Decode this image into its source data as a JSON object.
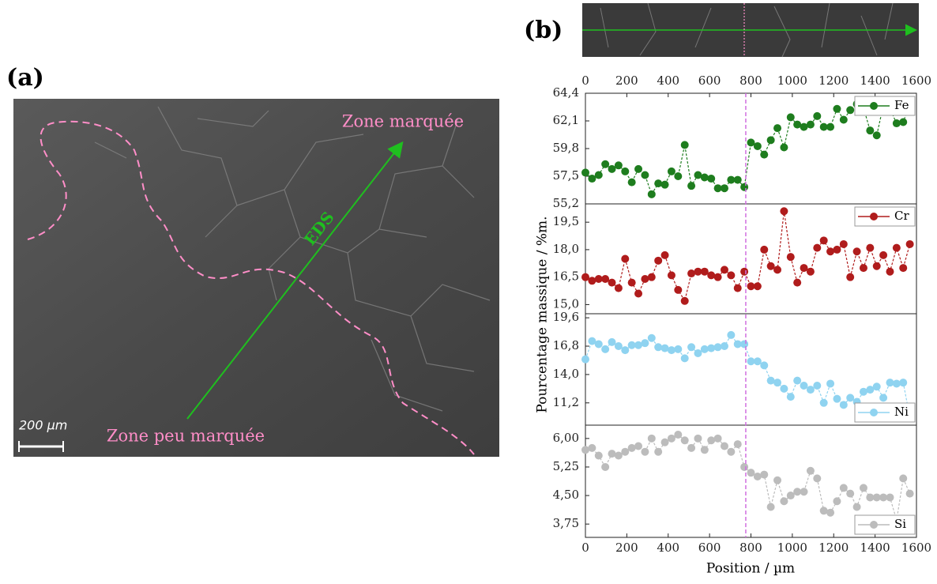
{
  "figure_a": {
    "label": "(a)",
    "zone_marked": "Zone marquée",
    "zone_unmarked": "Zone peu marquée",
    "arrow_label": "EDS",
    "scale_label": "200 µm"
  },
  "figure_b": {
    "label": "(b)",
    "x_label": "Position / µm",
    "y_label": "Pourcentage massique / %m.",
    "xlim": [
      0,
      1600
    ],
    "xticks": [
      0,
      200,
      400,
      600,
      800,
      1000,
      1200,
      1400,
      1600
    ],
    "divider_x": 775
  },
  "chart_data": [
    {
      "type": "line",
      "legend": "upper right",
      "ylim": [
        55.2,
        64.4
      ],
      "yticks": [
        {
          "value": 55.2,
          "label": "55,2"
        },
        {
          "value": 57.5,
          "label": "57,5"
        },
        {
          "value": 59.8,
          "label": "59,8"
        },
        {
          "value": 62.1,
          "label": "62,1"
        },
        {
          "value": 64.4,
          "label": "64,4"
        }
      ],
      "x": [
        0,
        32,
        64,
        96,
        128,
        160,
        192,
        224,
        256,
        288,
        320,
        352,
        384,
        416,
        448,
        480,
        512,
        544,
        576,
        608,
        640,
        672,
        704,
        736,
        768,
        800,
        832,
        864,
        896,
        928,
        960,
        992,
        1024,
        1056,
        1088,
        1120,
        1152,
        1184,
        1216,
        1248,
        1280,
        1312,
        1344,
        1376,
        1408,
        1440,
        1472,
        1504,
        1536,
        1568
      ],
      "series": [
        {
          "name": "Fe",
          "color": "#1e7d1e",
          "values": [
            57.8,
            57.3,
            57.6,
            58.5,
            58.1,
            58.4,
            57.9,
            57.0,
            58.1,
            57.6,
            56.0,
            56.9,
            56.8,
            57.9,
            57.5,
            60.1,
            56.7,
            57.6,
            57.4,
            57.3,
            56.5,
            56.5,
            57.2,
            57.2,
            56.6,
            60.3,
            60.0,
            59.3,
            60.5,
            61.5,
            59.9,
            62.4,
            61.8,
            61.6,
            61.8,
            62.5,
            61.6,
            61.6,
            63.1,
            62.2,
            63.0,
            63.5,
            63.2,
            61.3,
            60.9,
            63.4,
            63.1,
            61.9,
            62.0,
            63.5
          ]
        }
      ]
    },
    {
      "type": "line",
      "legend": "upper right",
      "ylim": [
        14.5,
        20.5
      ],
      "yticks": [
        {
          "value": 15.0,
          "label": "15,0"
        },
        {
          "value": 16.5,
          "label": "16,5"
        },
        {
          "value": 18.0,
          "label": "18,0"
        },
        {
          "value": 19.5,
          "label": "19,5"
        }
      ],
      "x": [
        0,
        32,
        64,
        96,
        128,
        160,
        192,
        224,
        256,
        288,
        320,
        352,
        384,
        416,
        448,
        480,
        512,
        544,
        576,
        608,
        640,
        672,
        704,
        736,
        768,
        800,
        832,
        864,
        896,
        928,
        960,
        992,
        1024,
        1056,
        1088,
        1120,
        1152,
        1184,
        1216,
        1248,
        1280,
        1312,
        1344,
        1376,
        1408,
        1440,
        1472,
        1504,
        1536,
        1568
      ],
      "series": [
        {
          "name": "Cr",
          "color": "#b01c1c",
          "values": [
            16.5,
            16.3,
            16.4,
            16.4,
            16.2,
            15.9,
            17.5,
            16.2,
            15.6,
            16.4,
            16.5,
            17.4,
            17.7,
            16.6,
            15.8,
            15.2,
            16.7,
            16.8,
            16.8,
            16.6,
            16.5,
            16.9,
            16.6,
            15.9,
            16.8,
            16.0,
            16.0,
            18.0,
            17.1,
            16.9,
            20.1,
            17.6,
            16.2,
            17.0,
            16.8,
            18.1,
            18.5,
            17.9,
            18.0,
            18.3,
            16.5,
            17.9,
            17.0,
            18.1,
            17.1,
            17.7,
            16.8,
            18.1,
            17.0,
            18.3
          ]
        }
      ]
    },
    {
      "type": "line",
      "legend": "lower right",
      "ylim": [
        9.0,
        20.0
      ],
      "yticks": [
        {
          "value": 11.2,
          "label": "11,2"
        },
        {
          "value": 14.0,
          "label": "14,0"
        },
        {
          "value": 16.8,
          "label": "16,8"
        },
        {
          "value": 19.6,
          "label": "19,6"
        }
      ],
      "x": [
        0,
        32,
        64,
        96,
        128,
        160,
        192,
        224,
        256,
        288,
        320,
        352,
        384,
        416,
        448,
        480,
        512,
        544,
        576,
        608,
        640,
        672,
        704,
        736,
        768,
        800,
        832,
        864,
        896,
        928,
        960,
        992,
        1024,
        1056,
        1088,
        1120,
        1152,
        1184,
        1216,
        1248,
        1280,
        1312,
        1344,
        1376,
        1408,
        1440,
        1472,
        1504,
        1536,
        1568
      ],
      "series": [
        {
          "name": "Ni",
          "color": "#8fd3f0",
          "values": [
            15.5,
            17.3,
            17.0,
            16.5,
            17.2,
            16.8,
            16.4,
            16.9,
            16.9,
            17.1,
            17.6,
            16.7,
            16.6,
            16.4,
            16.5,
            15.6,
            16.7,
            16.1,
            16.5,
            16.6,
            16.7,
            16.8,
            17.9,
            17.0,
            17.0,
            15.3,
            15.3,
            14.9,
            13.4,
            13.2,
            12.6,
            11.8,
            13.4,
            12.9,
            12.5,
            12.9,
            11.2,
            13.1,
            11.6,
            11.0,
            11.7,
            11.3,
            12.3,
            12.5,
            12.8,
            11.7,
            13.2,
            13.1,
            13.2,
            9.8
          ]
        }
      ]
    },
    {
      "type": "line",
      "legend": "lower right",
      "ylim": [
        3.4,
        6.35
      ],
      "yticks": [
        {
          "value": 3.75,
          "label": "3,75"
        },
        {
          "value": 4.5,
          "label": "4,50"
        },
        {
          "value": 5.25,
          "label": "5,25"
        },
        {
          "value": 6.0,
          "label": "6,00"
        }
      ],
      "x": [
        0,
        32,
        64,
        96,
        128,
        160,
        192,
        224,
        256,
        288,
        320,
        352,
        384,
        416,
        448,
        480,
        512,
        544,
        576,
        608,
        640,
        672,
        704,
        736,
        768,
        800,
        832,
        864,
        896,
        928,
        960,
        992,
        1024,
        1056,
        1088,
        1120,
        1152,
        1184,
        1216,
        1248,
        1280,
        1312,
        1344,
        1376,
        1408,
        1440,
        1472,
        1504,
        1536,
        1568
      ],
      "series": [
        {
          "name": "Si",
          "color": "#bcbcbc",
          "values": [
            5.7,
            5.75,
            5.55,
            5.25,
            5.6,
            5.55,
            5.65,
            5.75,
            5.8,
            5.65,
            6.0,
            5.65,
            5.9,
            6.0,
            6.1,
            5.95,
            5.75,
            6.0,
            5.7,
            5.95,
            6.0,
            5.8,
            5.65,
            5.85,
            5.25,
            5.1,
            5.0,
            5.05,
            4.2,
            4.9,
            4.35,
            4.5,
            4.6,
            4.6,
            5.15,
            4.95,
            4.1,
            4.05,
            4.35,
            4.7,
            4.55,
            4.2,
            4.7,
            4.45,
            4.45,
            4.45,
            4.45,
            3.85,
            4.95,
            4.55
          ]
        }
      ]
    }
  ]
}
